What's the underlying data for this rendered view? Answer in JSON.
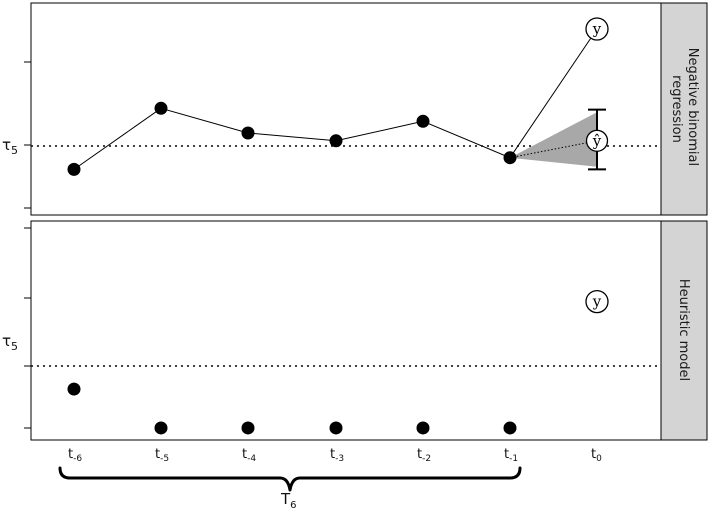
{
  "panels": [
    {
      "strip_label": [
        "Negative binomial",
        "regression"
      ],
      "threshold_label": "τ",
      "threshold_sub": "5",
      "observed_label": "y",
      "predicted_label": "ŷ"
    },
    {
      "strip_label": [
        "Heuristic model"
      ],
      "threshold_label": "τ",
      "threshold_sub": "5",
      "observed_label": "y"
    }
  ],
  "time_labels": [
    {
      "base": "t",
      "sub": "-6"
    },
    {
      "base": "t",
      "sub": "-5"
    },
    {
      "base": "t",
      "sub": "-4"
    },
    {
      "base": "t",
      "sub": "-3"
    },
    {
      "base": "t",
      "sub": "-2"
    },
    {
      "base": "t",
      "sub": "-1"
    },
    {
      "base": "t",
      "sub": "0"
    }
  ],
  "window_label": {
    "base": "T",
    "sub": "6"
  },
  "chart_data": [
    {
      "type": "line",
      "x": [
        "t-6",
        "t-5",
        "t-4",
        "t-3",
        "t-2",
        "t-1"
      ],
      "values": [
        -0.9,
        1.45,
        0.5,
        0.2,
        0.95,
        -0.45
      ],
      "threshold": 0,
      "observed_t0": 4.5,
      "predicted_t0": 0.2,
      "interval_t0": [
        -0.9,
        1.4
      ],
      "cone_t0": [
        -0.8,
        1.3
      ],
      "ylim": [
        -2.3,
        5.4
      ]
    },
    {
      "type": "scatter",
      "x": [
        "t-6",
        "t-5",
        "t-4",
        "t-3",
        "t-2",
        "t-1"
      ],
      "values": [
        -0.95,
        -2.55,
        -2.55,
        -2.55,
        -2.55,
        -2.55
      ],
      "threshold": 0,
      "observed_t0": 2.65,
      "ylim": [
        -2.55,
        5.4
      ]
    }
  ]
}
